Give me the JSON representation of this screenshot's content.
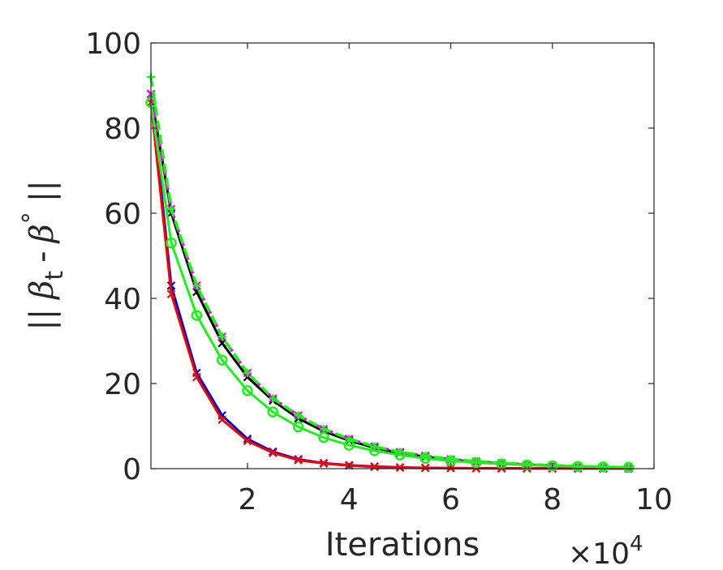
{
  "chart_data": {
    "type": "line",
    "xlabel": "Iterations",
    "x_exponent_label": "×10",
    "x_exponent_power": "4",
    "ylabel": {
      "bars_left": "||",
      "beta": "β",
      "subscript": "t",
      "minus": "-",
      "beta2": "β",
      "degree": "°",
      "bars_right": "||"
    },
    "xlim": [
      0.1,
      10
    ],
    "ylim": [
      0,
      100
    ],
    "xticks": [
      2,
      4,
      6,
      8,
      10
    ],
    "yticks": [
      0,
      20,
      40,
      60,
      80,
      100
    ],
    "grid": false,
    "x": [
      0.1,
      0.5,
      1.0,
      1.5,
      2.0,
      2.5,
      3.0,
      3.5,
      4.0,
      4.5,
      5.0,
      5.5,
      6.0,
      6.5,
      7.0,
      7.5,
      8.0,
      8.5,
      9.0,
      9.5
    ],
    "series": [
      {
        "color": "#0000cc",
        "marker": "x",
        "dash": "solid",
        "values": [
          88,
          43,
          22.5,
          12.5,
          7,
          4,
          2.2,
          1.3,
          0.8,
          0.5,
          0.3,
          0.2,
          0.15,
          0.1,
          0.08,
          0.06,
          0.05,
          0.04,
          0.03,
          0.03
        ]
      },
      {
        "color": "#ee0000",
        "marker": "x",
        "dash": "solid",
        "values": [
          86,
          41,
          21.5,
          11.5,
          6.5,
          3.7,
          2,
          1.2,
          0.7,
          0.4,
          0.25,
          0.15,
          0.1,
          0.08,
          0.06,
          0.05,
          0.04,
          0.03,
          0.03,
          0.02
        ]
      },
      {
        "color": "#000000",
        "marker": "x",
        "dash": "solid",
        "values": [
          88,
          60,
          41.5,
          29.5,
          21.5,
          16,
          11.8,
          8.8,
          6.6,
          4.9,
          3.7,
          2.8,
          2.1,
          1.6,
          1.2,
          0.9,
          0.7,
          0.5,
          0.4,
          0.3
        ]
      },
      {
        "color": "#ee00ee",
        "marker": "x",
        "dash": "dashed",
        "values": [
          88,
          61,
          43,
          31,
          22.5,
          16.5,
          12.5,
          9.3,
          7,
          5.2,
          3.9,
          3,
          2.2,
          1.7,
          1.3,
          1,
          0.75,
          0.55,
          0.4,
          0.3
        ]
      },
      {
        "color": "#22ee22",
        "marker": "circle",
        "dash": "solid",
        "values": [
          86,
          53,
          36,
          25.5,
          18.3,
          13.3,
          9.8,
          7.3,
          5.5,
          4.2,
          3.2,
          2.4,
          1.8,
          1.4,
          1.1,
          0.85,
          0.65,
          0.5,
          0.4,
          0.3
        ]
      },
      {
        "color": "#22ee22",
        "marker": "plus",
        "dash": "dashed",
        "values": [
          92,
          61,
          43,
          31,
          22.5,
          16.5,
          12.5,
          9.3,
          7,
          5.2,
          3.9,
          3,
          2.2,
          1.7,
          1.3,
          1,
          0.75,
          0.55,
          0.4,
          0.3
        ]
      }
    ]
  }
}
